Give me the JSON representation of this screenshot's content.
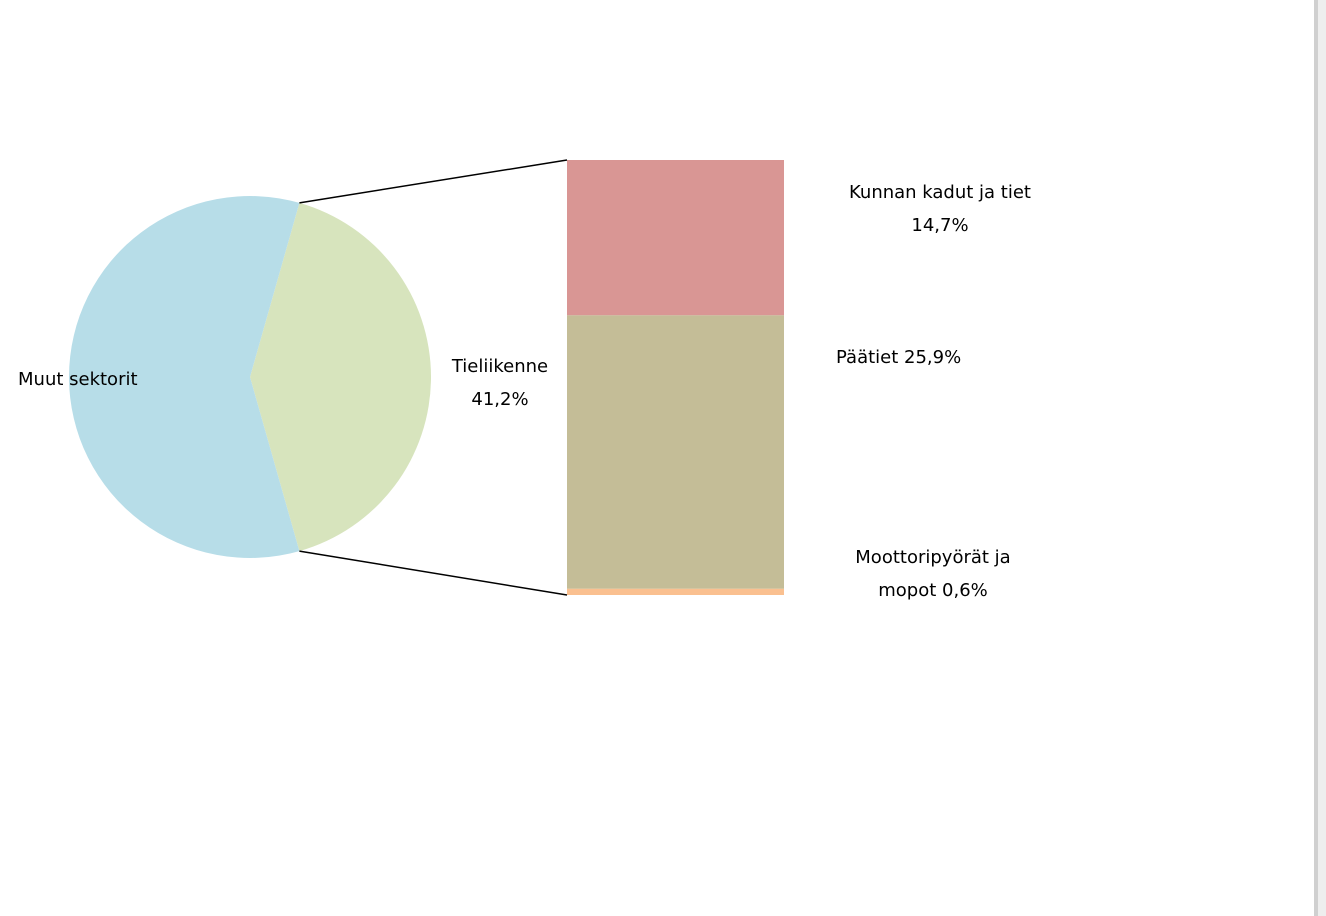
{
  "chart_data": {
    "type": "bar-of-pie",
    "categories": [
      "Muut sektorit",
      "Tieliikenne"
    ],
    "values": [
      58.8,
      41.2
    ],
    "value_labels": [
      null,
      "41,2%"
    ],
    "colors": [
      "#b7dde8",
      "#d7e4bd"
    ],
    "bar": {
      "categories": [
        "Kunnan kadut ja tiet",
        "Päätiet",
        "Moottoripyörät ja mopot"
      ],
      "values": [
        14.7,
        25.9,
        0.6
      ],
      "value_labels": [
        "14,7%",
        "25,9%",
        "0,6%"
      ],
      "colors": [
        "#d99694",
        "#c4bd97",
        "#fac090"
      ]
    }
  }
}
